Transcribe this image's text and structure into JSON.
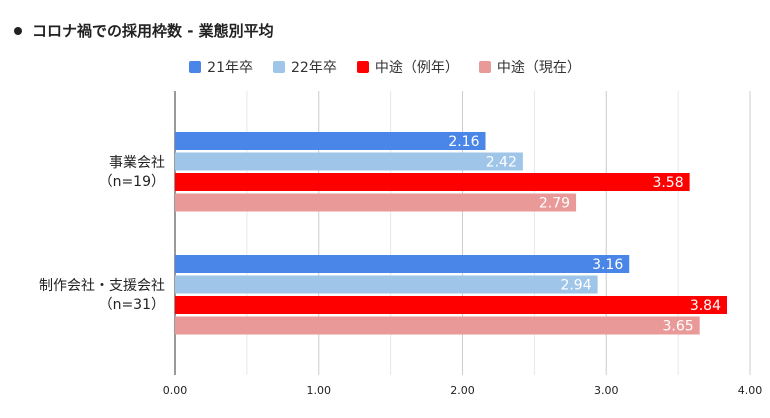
{
  "title": "コロナ禍での採用枠数 - 業態別平均",
  "chart_data": {
    "type": "bar",
    "orientation": "horizontal",
    "title": "コロナ禍での採用枠数 - 業態別平均",
    "categories": [
      [
        "事業会社",
        "（n=19）"
      ],
      [
        "制作会社・支援会社",
        "（n=31）"
      ]
    ],
    "series": [
      {
        "name": "21年卒",
        "color": "#4A86E8",
        "values": [
          2.16,
          3.16
        ]
      },
      {
        "name": "22年卒",
        "color": "#9FC5E8",
        "values": [
          2.42,
          2.94
        ]
      },
      {
        "name": "中途（例年）",
        "color": "#FF0000",
        "values": [
          3.58,
          3.84
        ]
      },
      {
        "name": "中途（現在）",
        "color": "#EA9999",
        "values": [
          2.79,
          3.65
        ]
      }
    ],
    "xlim": [
      0,
      4
    ],
    "xticks": [
      "0.00",
      "1.00",
      "2.00",
      "3.00",
      "4.00"
    ],
    "grid": true,
    "legend_position": "top"
  }
}
